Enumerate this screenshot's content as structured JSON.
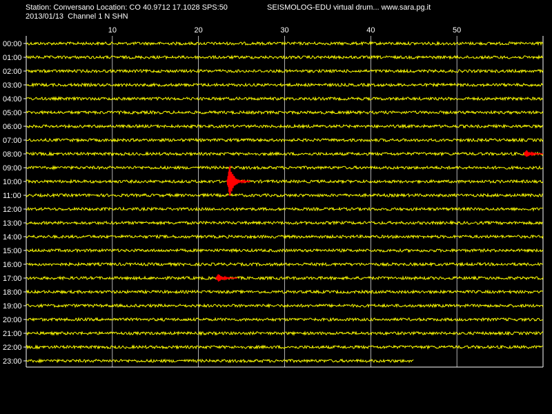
{
  "header": {
    "station_line": "Station: Conversano Location: CO 40.9712 17.1028 SPS:50",
    "date_line": "2013/01/13  Channel 1 N SHN",
    "app_title": "SEISMOLOG-EDU virtual drum... www.sara.pg.it"
  },
  "colors": {
    "background": "#000000",
    "trace": "#ffff00",
    "event": "#ff0000",
    "grid": "#ffffff",
    "text": "#ffffff"
  },
  "chart_data": {
    "type": "line",
    "title": "SEISMOLOG-EDU virtual drum... www.sara.pg.it",
    "xlabel": "",
    "ylabel": "",
    "xlim": [
      0,
      60
    ],
    "x_ticks": [
      10,
      20,
      30,
      40,
      50
    ],
    "grid": true,
    "rows": [
      "00:00",
      "01:00",
      "02:00",
      "03:00",
      "04:00",
      "05:00",
      "06:00",
      "07:00",
      "08:00",
      "09:00",
      "10:00",
      "11:00",
      "12:00",
      "13:00",
      "14:00",
      "15:00",
      "16:00",
      "17:00",
      "18:00",
      "19:00",
      "20:00",
      "21:00",
      "22:00",
      "23:00"
    ],
    "last_row_end_minute": 45,
    "events": [
      {
        "hour": "08:00",
        "start_minute": 57.8,
        "end_minute": 60,
        "peak_amplitude": 0.7
      },
      {
        "hour": "10:00",
        "start_minute": 23.3,
        "end_minute": 26,
        "peak_amplitude": 3.0
      },
      {
        "hour": "17:00",
        "start_minute": 22,
        "end_minute": 24.5,
        "peak_amplitude": 0.7
      }
    ]
  }
}
